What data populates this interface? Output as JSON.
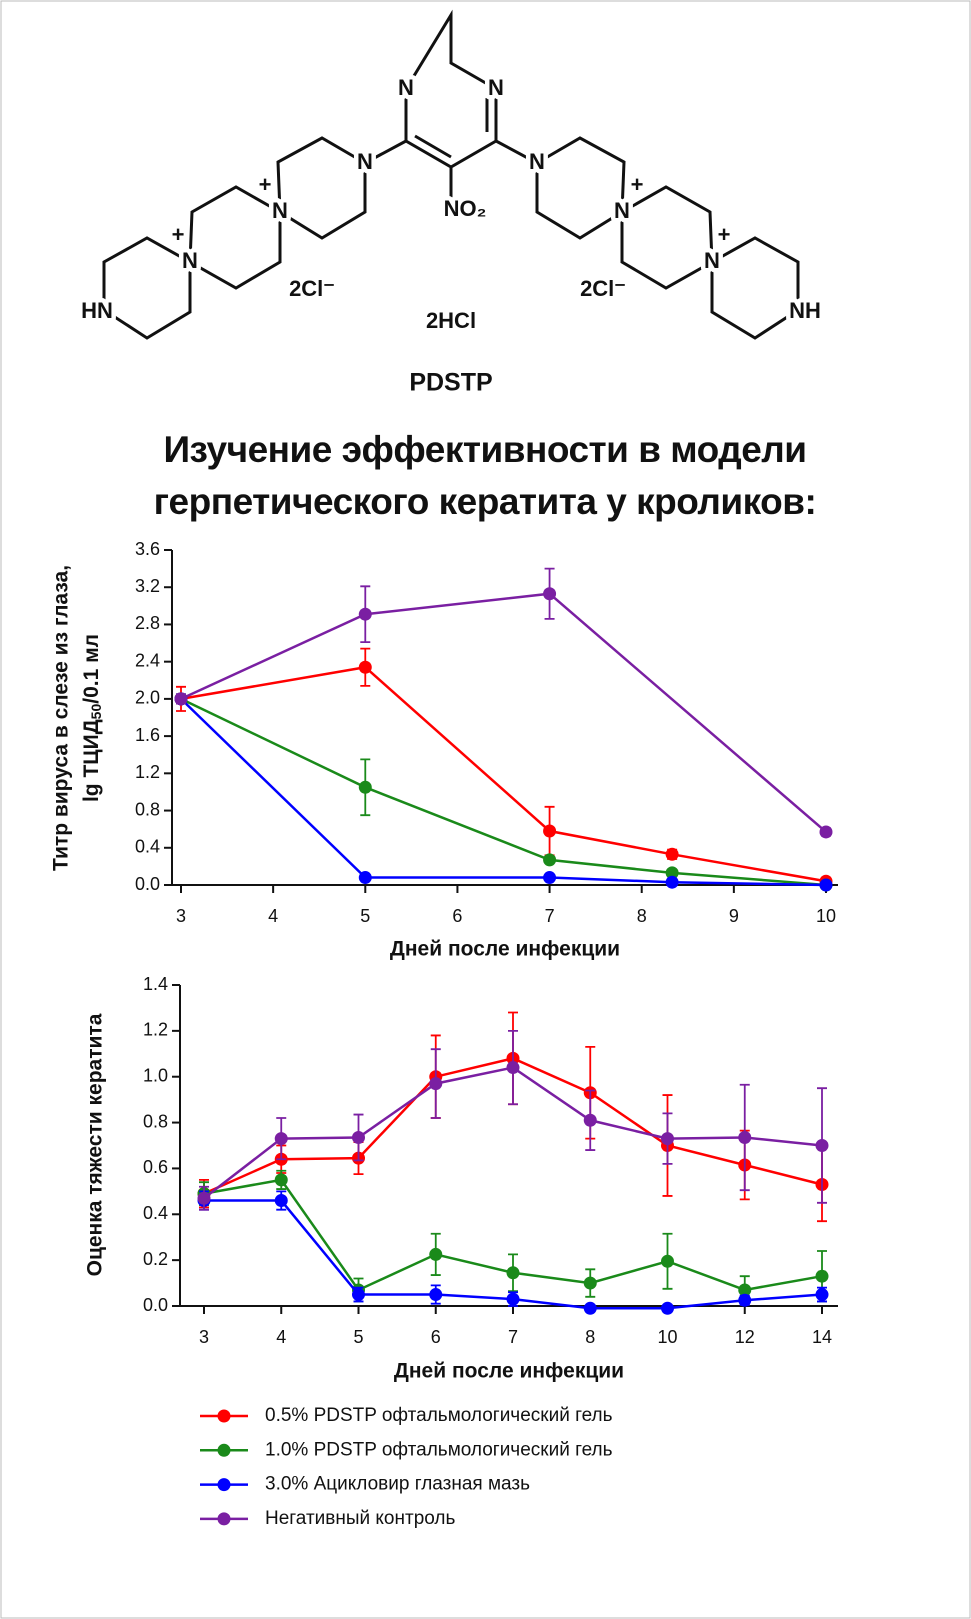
{
  "structure": {
    "labels": [
      "N",
      "N",
      "NO₂",
      "N",
      "N",
      "N",
      "N",
      "N",
      "N",
      "HN",
      "NH",
      "+",
      "+",
      "+",
      "+",
      "2Cl⁻",
      "2Cl⁻",
      "2HCl",
      "PDSTP"
    ]
  },
  "title": "Изучение эффективности в модели герпетического кератита у кроликов:",
  "chart_data": [
    {
      "type": "line",
      "y_label": [
        "Титр вируса в слезе из глаза,",
        "lg ТЦИД",
        "50",
        "/0.1 мл"
      ],
      "x_label": "Дней после инфекции",
      "xlim": [
        3,
        10
      ],
      "xticks": [
        3,
        4,
        5,
        6,
        7,
        8,
        9,
        10
      ],
      "ylim": [
        0,
        3.6
      ],
      "yticks": [
        {
          "value": 0,
          "label": "0.0"
        },
        0.4,
        0.8,
        1.2,
        1.6,
        {
          "value": 2,
          "label": "2.0"
        },
        2.4,
        2.8,
        3.2,
        3.6
      ],
      "series": [
        {
          "color": "#ff0000",
          "x": [
            3,
            5,
            7,
            8.33,
            10
          ],
          "values": [
            2.0,
            2.34,
            0.58,
            0.33,
            0.04
          ],
          "errors": [
            0.13,
            0.2,
            0.26,
            0.05,
            0.02
          ]
        },
        {
          "color": "#1a8a1a",
          "x": [
            3,
            5,
            7,
            8.33,
            10
          ],
          "values": [
            2.0,
            1.05,
            0.27,
            0.13,
            0.0
          ],
          "errors": [
            0.05,
            0.3,
            0.03,
            0.02,
            0.01
          ]
        },
        {
          "color": "#0000ff",
          "x": [
            3,
            5,
            7,
            8.33,
            10
          ],
          "values": [
            2.0,
            0.08,
            0.08,
            0.03,
            0.0
          ],
          "errors": [
            0.05,
            0.02,
            0.02,
            0.01,
            0.01
          ]
        },
        {
          "color": "#7a1fa2",
          "x": [
            3,
            5,
            7,
            10
          ],
          "values": [
            2.0,
            2.91,
            3.13,
            0.57
          ],
          "errors": [
            0.05,
            0.3,
            0.27,
            0.04
          ]
        }
      ]
    },
    {
      "type": "line",
      "y_label": [
        "Оценка тяжести кератита"
      ],
      "x_label": "Дней после инфекции",
      "categories": [
        "3",
        "4",
        "5",
        "6",
        "7",
        "8",
        "10",
        "12",
        "14"
      ],
      "ylim": [
        0,
        1.4
      ],
      "yticks": [
        {
          "value": 0,
          "label": "0.0"
        },
        0.2,
        0.4,
        0.6,
        0.8,
        {
          "value": 1,
          "label": "1.0"
        },
        1.2,
        1.4
      ],
      "series": [
        {
          "name": "0.5% PDSTP офтальмологический гель",
          "color": "#ff0000",
          "values": [
            0.49,
            0.64,
            0.645,
            1.0,
            1.08,
            0.93,
            0.7,
            0.615,
            0.53
          ],
          "errors": [
            0.06,
            0.06,
            0.07,
            0.18,
            0.2,
            0.2,
            0.22,
            0.15,
            0.16
          ]
        },
        {
          "name": "1.0% PDSTP офтальмологический гель",
          "color": "#1a8a1a",
          "values": [
            0.49,
            0.55,
            0.07,
            0.225,
            0.145,
            0.1,
            0.195,
            0.07,
            0.13
          ],
          "errors": [
            0.05,
            0.04,
            0.05,
            0.09,
            0.08,
            0.06,
            0.12,
            0.06,
            0.11
          ]
        },
        {
          "name": "3.0% Ацикловир глазная мазь",
          "color": "#0000ff",
          "values": [
            0.46,
            0.46,
            0.05,
            0.05,
            0.03,
            -0.01,
            -0.01,
            0.025,
            0.05
          ],
          "errors": [
            0.04,
            0.04,
            0.03,
            0.04,
            0.03,
            0.01,
            0.01,
            0.02,
            0.03
          ]
        },
        {
          "name": "Негативный контроль",
          "color": "#7a1fa2",
          "values": [
            0.47,
            0.73,
            0.735,
            0.97,
            1.04,
            0.81,
            0.73,
            0.735,
            0.7
          ],
          "errors": [
            0.05,
            0.09,
            0.1,
            0.15,
            0.16,
            0.13,
            0.11,
            0.23,
            0.25
          ]
        }
      ]
    }
  ]
}
